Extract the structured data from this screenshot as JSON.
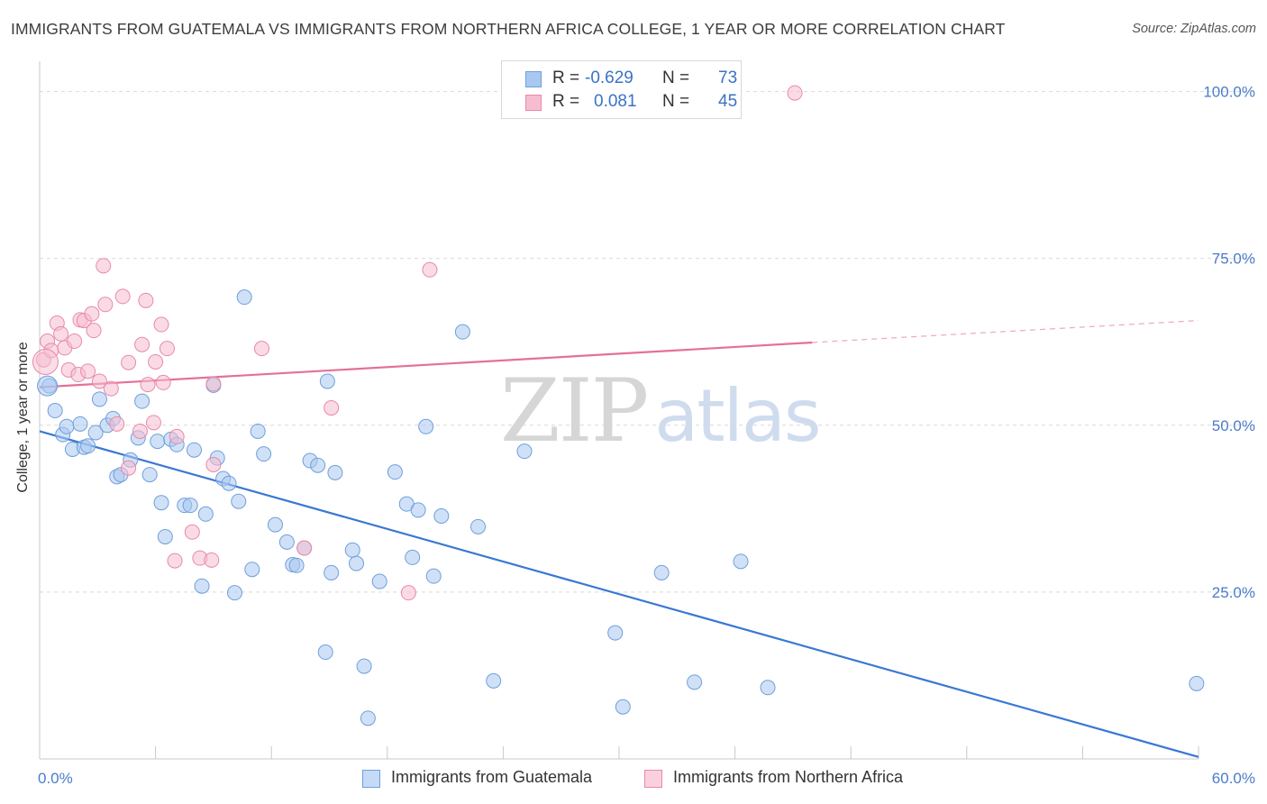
{
  "title": "IMMIGRANTS FROM GUATEMALA VS IMMIGRANTS FROM NORTHERN AFRICA COLLEGE, 1 YEAR OR MORE CORRELATION CHART",
  "source": "Source: ZipAtlas.com",
  "watermark": {
    "zip": "ZIP",
    "atlas": "atlas"
  },
  "legend": {
    "rows": [
      {
        "r_label": "R =",
        "r_value": "-0.629",
        "n_label": "N =",
        "n_value": "73",
        "color": "#a9c8f0",
        "border": "#6f9fdc"
      },
      {
        "r_label": "R =",
        "r_value": "0.081",
        "n_label": "N =",
        "n_value": "45",
        "color": "#f6bdd0",
        "border": "#e989a8"
      }
    ]
  },
  "bottom_legend": [
    {
      "label": "Immigrants from Guatemala",
      "color": "#c5daf5",
      "border": "#6f9fdc"
    },
    {
      "label": "Immigrants from Northern Africa",
      "color": "#fad0de",
      "border": "#e989a8"
    }
  ],
  "chart_data": {
    "type": "scatter",
    "title": "IMMIGRANTS FROM GUATEMALA VS IMMIGRANTS FROM NORTHERN AFRICA COLLEGE, 1 YEAR OR MORE CORRELATION CHART",
    "xlabel": "",
    "ylabel": "College, 1 year or more",
    "xlim": [
      0,
      60
    ],
    "ylim": [
      0,
      104
    ],
    "x_tick_labels": [
      "0.0%",
      "60.0%"
    ],
    "y_ticks": [
      25,
      50,
      75,
      100
    ],
    "y_tick_labels": [
      "25.0%",
      "50.0%",
      "75.0%",
      "100.0%"
    ],
    "grid": "horizontal dashed",
    "legend_placement": "top-center",
    "series": [
      {
        "name": "Immigrants from Guatemala",
        "color": "#6f9fdc",
        "fill": "#a9c8f0",
        "trend": {
          "x0": 0,
          "y0": 49.1,
          "x1": 60,
          "y1": 0.3
        },
        "points": [
          [
            0.5,
            55.9
          ],
          [
            0.8,
            52.2
          ],
          [
            1.2,
            48.6
          ],
          [
            1.4,
            49.8
          ],
          [
            1.7,
            46.4
          ],
          [
            2.1,
            50.2
          ],
          [
            2.3,
            46.7
          ],
          [
            2.5,
            46.9
          ],
          [
            2.9,
            48.9
          ],
          [
            3.1,
            53.9
          ],
          [
            3.5,
            50.0
          ],
          [
            3.8,
            51.0
          ],
          [
            4.0,
            42.3
          ],
          [
            4.2,
            42.6
          ],
          [
            4.7,
            44.8
          ],
          [
            5.1,
            48.1
          ],
          [
            5.3,
            53.6
          ],
          [
            5.7,
            42.6
          ],
          [
            6.1,
            47.6
          ],
          [
            6.3,
            38.4
          ],
          [
            6.5,
            33.3
          ],
          [
            6.8,
            47.9
          ],
          [
            7.1,
            47.1
          ],
          [
            7.5,
            38.0
          ],
          [
            7.8,
            38.0
          ],
          [
            8.0,
            46.3
          ],
          [
            8.4,
            25.9
          ],
          [
            8.6,
            36.7
          ],
          [
            9.0,
            56.0
          ],
          [
            9.2,
            45.1
          ],
          [
            9.5,
            42.0
          ],
          [
            9.8,
            41.3
          ],
          [
            10.1,
            24.9
          ],
          [
            10.3,
            38.6
          ],
          [
            10.6,
            69.2
          ],
          [
            11.0,
            28.4
          ],
          [
            11.3,
            49.1
          ],
          [
            11.6,
            45.7
          ],
          [
            12.2,
            35.1
          ],
          [
            12.8,
            32.5
          ],
          [
            13.1,
            29.1
          ],
          [
            13.3,
            29.0
          ],
          [
            13.7,
            31.6
          ],
          [
            14.0,
            44.7
          ],
          [
            14.4,
            44.0
          ],
          [
            14.8,
            16.0
          ],
          [
            14.9,
            56.6
          ],
          [
            15.1,
            27.9
          ],
          [
            15.3,
            42.9
          ],
          [
            16.2,
            31.3
          ],
          [
            16.4,
            29.3
          ],
          [
            16.8,
            13.9
          ],
          [
            17.0,
            6.1
          ],
          [
            17.6,
            26.6
          ],
          [
            18.4,
            43.0
          ],
          [
            19.0,
            38.2
          ],
          [
            19.3,
            30.2
          ],
          [
            19.6,
            37.3
          ],
          [
            20.0,
            49.8
          ],
          [
            20.4,
            27.4
          ],
          [
            20.8,
            36.4
          ],
          [
            21.9,
            64.0
          ],
          [
            22.7,
            34.8
          ],
          [
            23.5,
            11.7
          ],
          [
            25.1,
            46.1
          ],
          [
            29.8,
            18.9
          ],
          [
            30.2,
            7.8
          ],
          [
            32.2,
            27.9
          ],
          [
            33.9,
            11.5
          ],
          [
            36.3,
            29.6
          ],
          [
            37.7,
            10.7
          ],
          [
            59.9,
            11.3
          ]
        ]
      },
      {
        "name": "Immigrants from Northern Africa",
        "color": "#e989a8",
        "fill": "#f6bdd0",
        "trend": {
          "x0": 0,
          "y0": 55.7,
          "x1": 40,
          "y1": 62.4,
          "dashed_to": {
            "x": 60,
            "y": 65.7
          }
        },
        "points": [
          [
            0.2,
            59.8
          ],
          [
            0.4,
            62.6
          ],
          [
            0.6,
            61.2
          ],
          [
            0.9,
            65.3
          ],
          [
            1.1,
            63.7
          ],
          [
            1.3,
            61.6
          ],
          [
            1.5,
            58.3
          ],
          [
            1.8,
            62.6
          ],
          [
            2.0,
            57.6
          ],
          [
            2.1,
            65.8
          ],
          [
            2.3,
            65.7
          ],
          [
            2.5,
            58.1
          ],
          [
            2.7,
            66.7
          ],
          [
            2.8,
            64.2
          ],
          [
            3.1,
            56.6
          ],
          [
            3.3,
            73.9
          ],
          [
            3.4,
            68.1
          ],
          [
            3.7,
            55.5
          ],
          [
            4.0,
            50.2
          ],
          [
            4.3,
            69.3
          ],
          [
            4.6,
            43.6
          ],
          [
            4.6,
            59.4
          ],
          [
            5.2,
            49.1
          ],
          [
            5.3,
            62.1
          ],
          [
            5.5,
            68.7
          ],
          [
            5.6,
            56.1
          ],
          [
            5.9,
            50.4
          ],
          [
            6.0,
            59.5
          ],
          [
            6.3,
            65.1
          ],
          [
            6.4,
            56.4
          ],
          [
            6.6,
            61.5
          ],
          [
            7.0,
            29.7
          ],
          [
            7.1,
            48.3
          ],
          [
            7.9,
            34.0
          ],
          [
            8.3,
            30.1
          ],
          [
            8.9,
            29.8
          ],
          [
            9.0,
            44.1
          ],
          [
            9.0,
            56.2
          ],
          [
            11.5,
            61.5
          ],
          [
            13.7,
            31.6
          ],
          [
            15.1,
            52.6
          ],
          [
            19.1,
            24.9
          ],
          [
            20.2,
            73.3
          ],
          [
            39.1,
            99.8
          ]
        ]
      }
    ]
  }
}
